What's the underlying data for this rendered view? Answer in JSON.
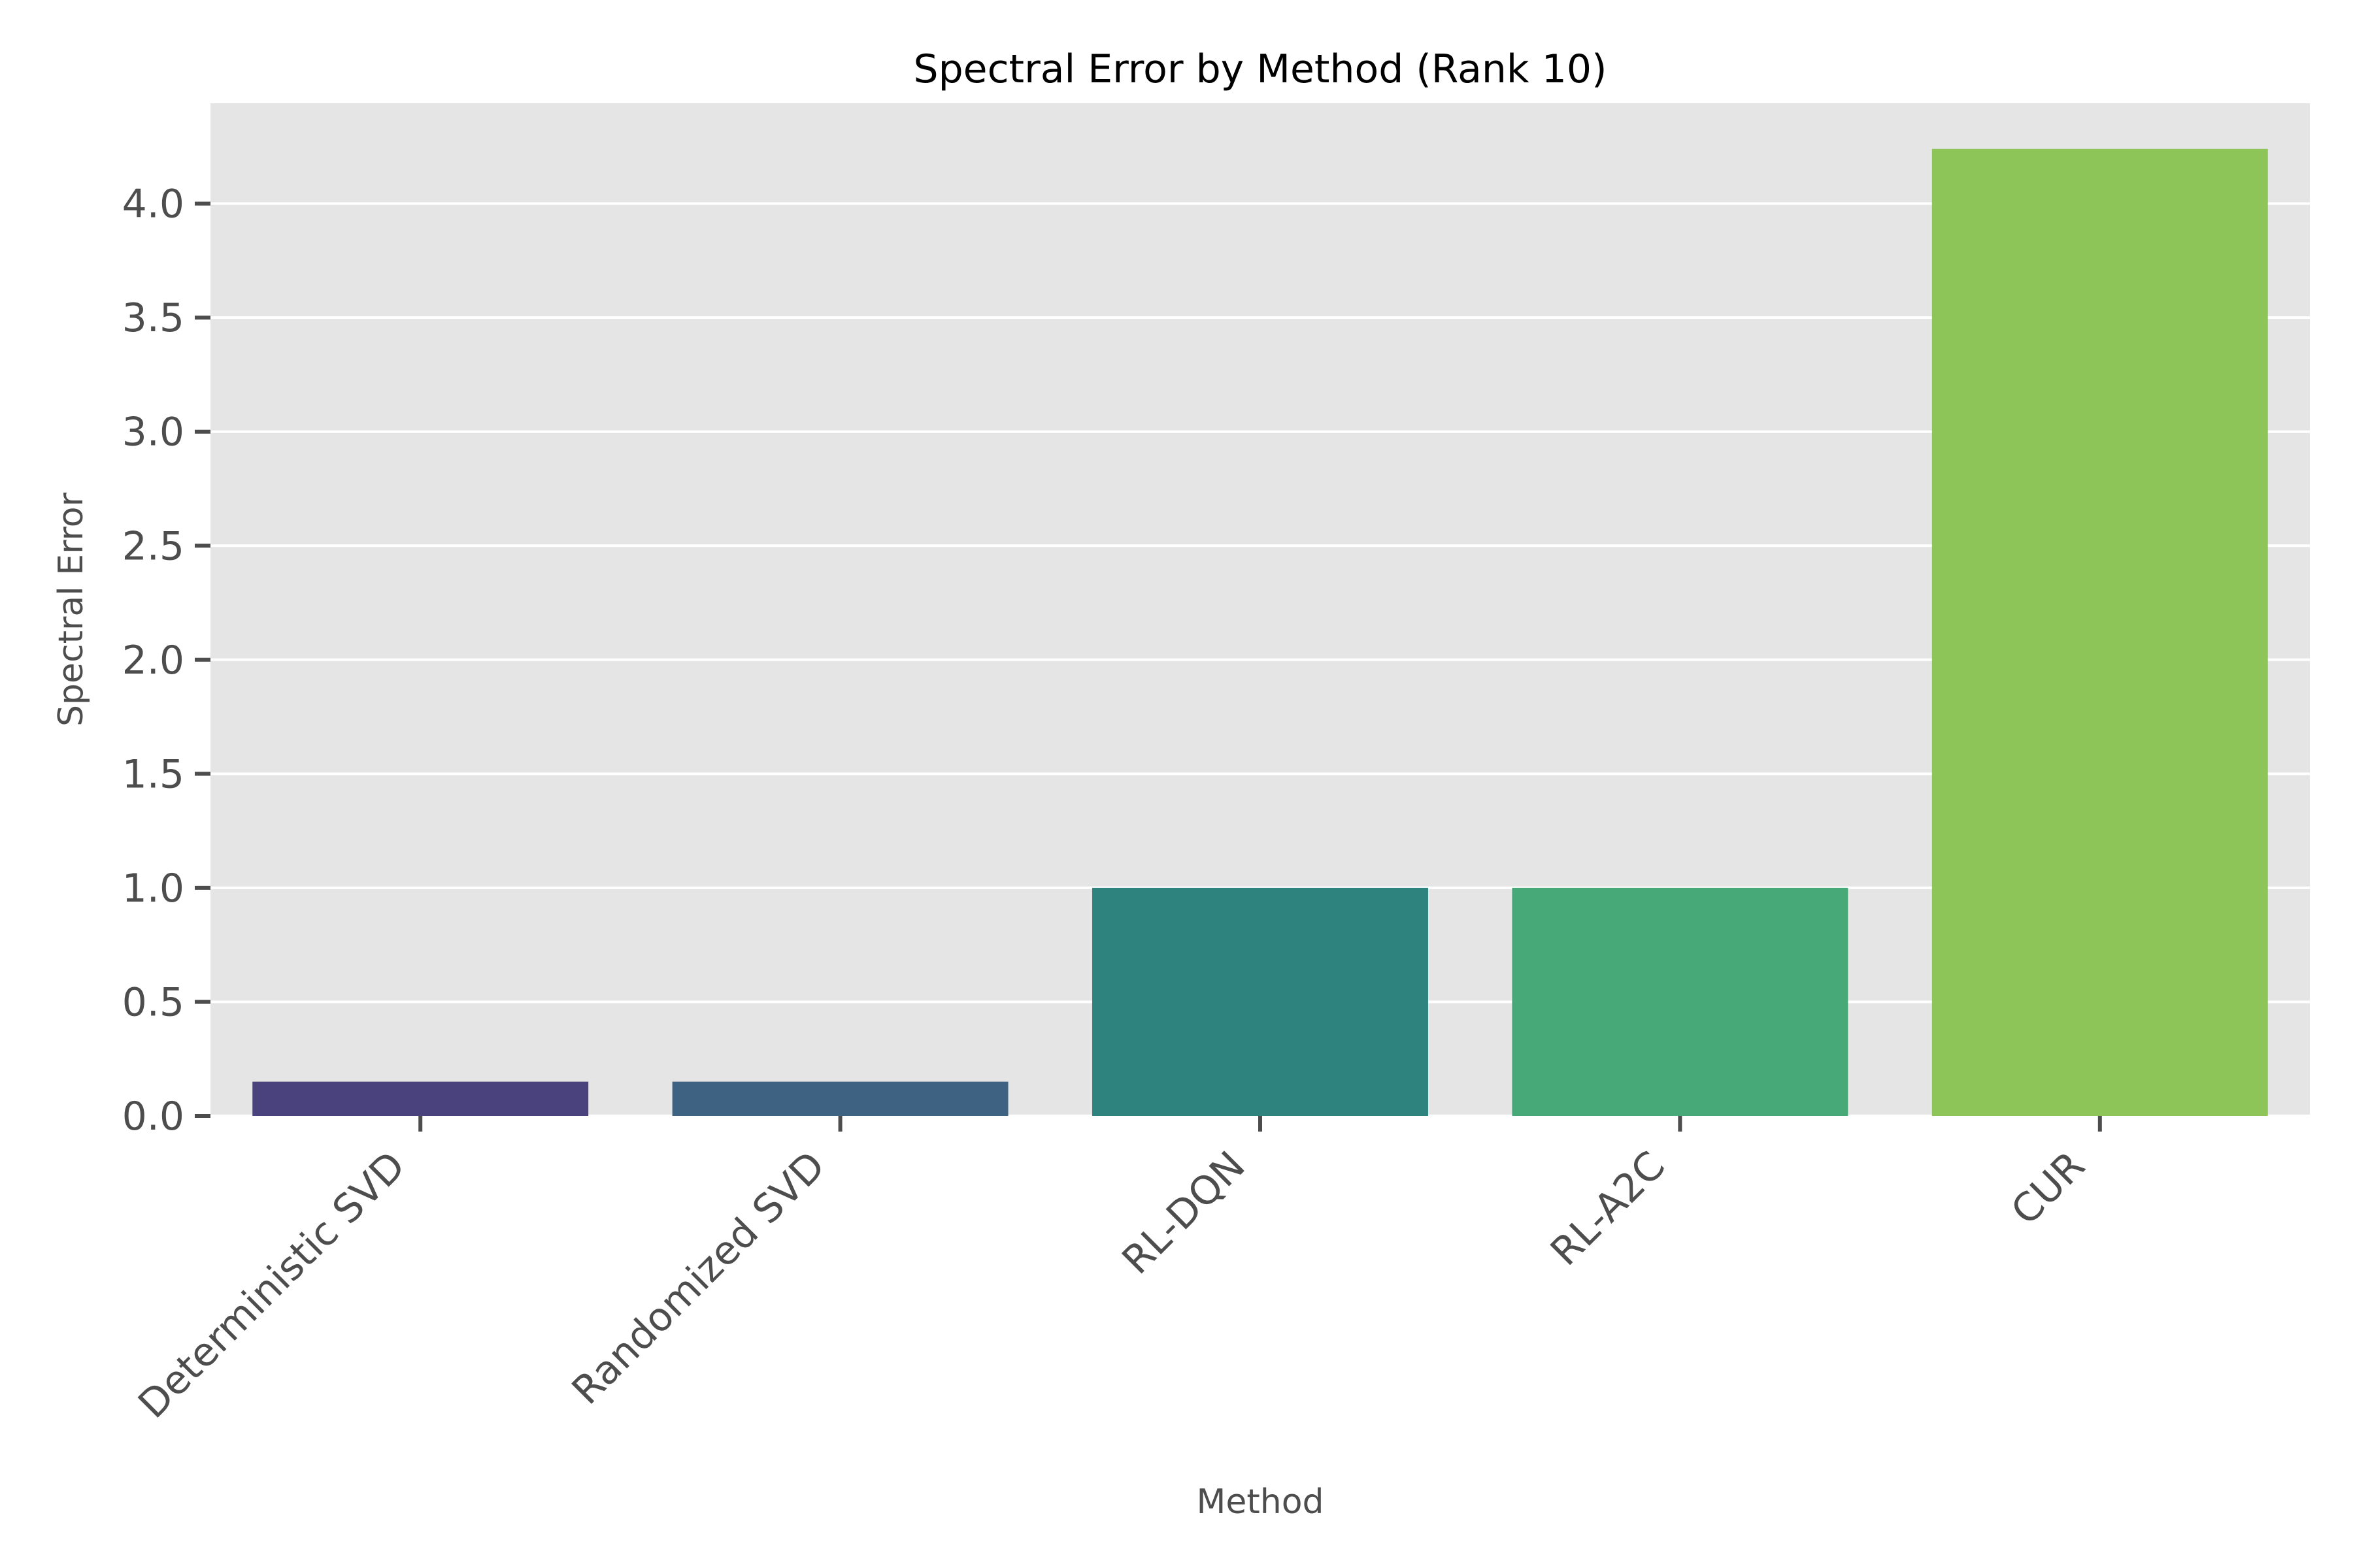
{
  "chart_data": {
    "type": "bar",
    "title": "Spectral Error by Method (Rank 10)",
    "xlabel": "Method",
    "ylabel": "Spectral Error",
    "categories": [
      "Deterministic SVD",
      "Randomized SVD",
      "RL-DQN",
      "RL-A2C",
      "CUR"
    ],
    "values": [
      0.15,
      0.15,
      1.0,
      1.0,
      4.24
    ],
    "colors": [
      "#4a427d",
      "#3e6281",
      "#2e837e",
      "#47a878",
      "#8dc558"
    ],
    "ylim": [
      0,
      4.44
    ],
    "yticks": [
      0.0,
      0.5,
      1.0,
      1.5,
      2.0,
      2.5,
      3.0,
      3.5,
      4.0
    ],
    "ytick_labels": [
      "0.0",
      "0.5",
      "1.0",
      "1.5",
      "2.0",
      "2.5",
      "3.0",
      "3.5",
      "4.0"
    ],
    "grid": true,
    "grid_axis": "y",
    "background_color": "#e5e5e5",
    "grid_color": "#ffffff"
  }
}
